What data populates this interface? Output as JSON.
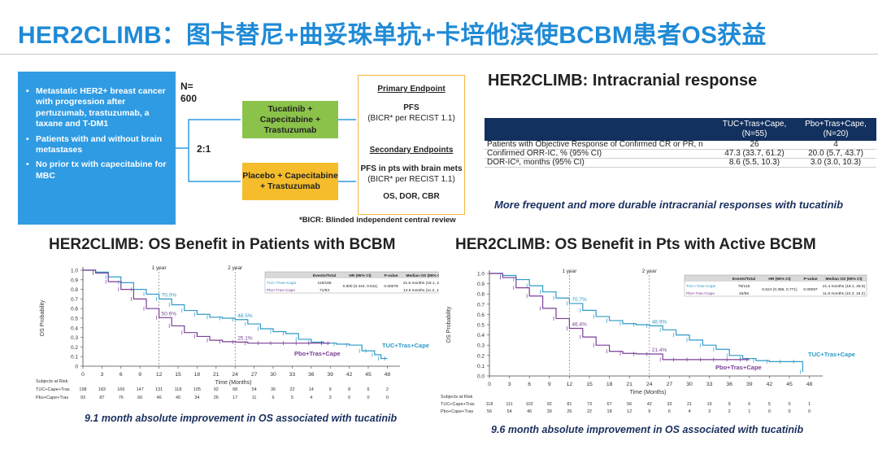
{
  "page": {
    "title": "HER2CLIMB：图卡替尼+曲妥珠单抗+卡培他滨使BCBM患者OS获益"
  },
  "design": {
    "eligibility": [
      "Metastatic HER2+ breast cancer with progression after pertuzumab, trastuzumab, a taxane and T-DM1",
      "Patients with and without brain metastases",
      "No prior tx with capecitabine for MBC"
    ],
    "n_label": "N=",
    "n_value": "600",
    "ratio": "2:1",
    "arm_tuc": "Tucatinib + Capecitabine + Trastuzumab",
    "arm_pbo": "Placebo + Capecitabine + Trastuzumab",
    "primary_header": "Primary Endpoint",
    "primary_1": "PFS",
    "primary_2": "(BICR* per RECIST 1.1)",
    "secondary_header": "Secondary Endpoints",
    "secondary_1": "PFS in pts with brain mets",
    "secondary_2": "(BICR* per RECIST 1.1)",
    "secondary_3": "OS, DOR, CBR",
    "footnote": "*BICR: Blinded independent central review"
  },
  "intracranial": {
    "title": "HER2CLIMB: Intracranial response",
    "col1": "TUC+Tras+Cape,",
    "col1_n": "(N=55)",
    "col2": "Pbo+Tras+Cape,",
    "col2_n": "(N=20)",
    "rows": [
      {
        "label": "Patients with Objective Response of Confirmed CR or PR, n",
        "a": "26",
        "b": "4"
      },
      {
        "label": "Confirmed ORR-IC, % (95% CI)",
        "a": "47.3 (33.7, 61.2)",
        "b": "20.0 (5.7, 43.7)"
      },
      {
        "label": "DOR-ICᵃ, months (95% CI)",
        "a": "8.6 (5.5, 10.3)",
        "b": "3.0 (3.0, 10.3)"
      }
    ],
    "caption": "More frequent and more durable intracranial responses with tucatinib"
  },
  "chart_data": [
    {
      "type": "line",
      "title": "HER2CLIMB: OS Benefit in Patients with BCBM",
      "xlabel": "Time (Months)",
      "ylabel": "OS Probability",
      "xlim": [
        0,
        50
      ],
      "ylim": [
        0,
        1.0
      ],
      "x_ticks": [
        0,
        3,
        6,
        9,
        12,
        15,
        18,
        21,
        24,
        27,
        30,
        33,
        36,
        39,
        42,
        45,
        48
      ],
      "y_ticks": [
        "0",
        "0.1",
        "0.2",
        "0.3",
        "0.4",
        "0.5",
        "0.6",
        "0.7",
        "0.8",
        "0.9",
        "1.0"
      ],
      "markers": [
        {
          "x": 12,
          "label": "1 year"
        },
        {
          "x": 24,
          "label": "2 year"
        }
      ],
      "series": [
        {
          "name": "TUC+Tras+Cape",
          "color": "#2f9ac7",
          "x": [
            0,
            2,
            4,
            6,
            8,
            10,
            12,
            14,
            16,
            18,
            20,
            22,
            24,
            26,
            28,
            30,
            32,
            34,
            36,
            38,
            40,
            42,
            44,
            45,
            46,
            47,
            48
          ],
          "y": [
            1.0,
            0.98,
            0.93,
            0.87,
            0.8,
            0.75,
            0.7,
            0.64,
            0.58,
            0.54,
            0.51,
            0.5,
            0.485,
            0.44,
            0.39,
            0.36,
            0.34,
            0.28,
            0.25,
            0.24,
            0.23,
            0.22,
            0.16,
            0.16,
            0.12,
            0.08,
            0.08
          ]
        },
        {
          "name": "Pbo+Tras+Cape",
          "color": "#7a3f96",
          "x": [
            0,
            2,
            4,
            6,
            8,
            10,
            12,
            14,
            16,
            18,
            20,
            22,
            24,
            26,
            28,
            30,
            32,
            34,
            36,
            38,
            39
          ],
          "y": [
            1.0,
            0.97,
            0.88,
            0.8,
            0.7,
            0.6,
            0.506,
            0.42,
            0.35,
            0.31,
            0.27,
            0.255,
            0.251,
            0.24,
            0.24,
            0.24,
            0.24,
            0.24,
            0.24,
            0.24,
            0.24
          ]
        }
      ],
      "point_labels": [
        {
          "x": 12,
          "y": 0.7,
          "text": "70.0%",
          "series": 0
        },
        {
          "x": 24,
          "y": 0.485,
          "text": "48.5%",
          "series": 0
        },
        {
          "x": 12,
          "y": 0.506,
          "text": "50.6%",
          "series": 1
        },
        {
          "x": 24,
          "y": 0.251,
          "text": "25.1%",
          "series": 1
        }
      ],
      "table": {
        "headers": [
          "",
          "Events/Total",
          "HR (95% CI)",
          "P-value",
          "Median OS (95% CI)"
        ],
        "rows": [
          [
            "TUC+Tras+Cape",
            "118/198",
            "0.600 (0.444, 0.811)",
            "0.00078",
            "21.6 months (18.1, 28.5)"
          ],
          [
            "Pbo+Tras+Cape",
            "71/93",
            "",
            "",
            "12.5 months (11.2, 16.9)"
          ]
        ]
      },
      "risk": {
        "label": "Subjects at Risk",
        "rows": [
          {
            "name": "TUC+Cape+Tras",
            "values": [
              "198",
              "183",
              "166",
              "147",
              "131",
              "118",
              "105",
              "92",
              "68",
              "54",
              "36",
              "22",
              "14",
              "9",
              "8",
              "6",
              "2"
            ]
          },
          {
            "name": "Pbo+Cape+Tras",
            "values": [
              "93",
              "87",
              "76",
              "66",
              "46",
              "40",
              "34",
              "26",
              "17",
              "11",
              "6",
              "5",
              "4",
              "3",
              "0",
              "0",
              "0"
            ]
          }
        ]
      },
      "caption": "9.1 month absolute improvement in OS associated with tucatinib"
    },
    {
      "type": "line",
      "title": "HER2CLIMB: OS Benefit in Pts with Active BCBM",
      "xlabel": "Time (Months)",
      "ylabel": "OS Probability",
      "xlim": [
        0,
        50
      ],
      "ylim": [
        0,
        1.0
      ],
      "x_ticks": [
        0,
        3,
        6,
        9,
        12,
        15,
        18,
        21,
        24,
        27,
        30,
        33,
        36,
        39,
        42,
        45,
        48
      ],
      "y_ticks": [
        "0.0",
        "0.1",
        "0.2",
        "0.3",
        "0.4",
        "0.5",
        "0.6",
        "0.7",
        "0.8",
        "0.9",
        "1.0"
      ],
      "markers": [
        {
          "x": 12,
          "label": "1 year"
        },
        {
          "x": 24,
          "label": "2 year"
        }
      ],
      "series": [
        {
          "name": "TUC+Tras+Cape",
          "color": "#2f9ac7",
          "x": [
            0,
            2,
            4,
            6,
            8,
            10,
            12,
            14,
            16,
            18,
            20,
            22,
            24,
            26,
            28,
            30,
            32,
            34,
            36,
            38,
            40,
            42,
            44,
            46,
            47
          ],
          "y": [
            1.0,
            0.98,
            0.94,
            0.88,
            0.82,
            0.76,
            0.707,
            0.64,
            0.58,
            0.54,
            0.51,
            0.5,
            0.489,
            0.45,
            0.4,
            0.35,
            0.3,
            0.26,
            0.2,
            0.17,
            0.15,
            0.14,
            0.14,
            0.14,
            0.04
          ]
        },
        {
          "name": "Pbo+Tras+Cape",
          "color": "#7a3f96",
          "x": [
            0,
            2,
            4,
            6,
            8,
            10,
            12,
            14,
            16,
            18,
            20,
            22,
            24,
            26,
            28,
            30,
            32,
            34,
            36,
            38,
            39
          ],
          "y": [
            1.0,
            0.96,
            0.86,
            0.78,
            0.66,
            0.56,
            0.464,
            0.38,
            0.3,
            0.24,
            0.22,
            0.215,
            0.214,
            0.16,
            0.16,
            0.16,
            0.16,
            0.16,
            0.16,
            0.16,
            0.16
          ]
        }
      ],
      "point_labels": [
        {
          "x": 12,
          "y": 0.707,
          "text": "70.7%",
          "series": 0
        },
        {
          "x": 24,
          "y": 0.489,
          "text": "48.9%",
          "series": 0
        },
        {
          "x": 12,
          "y": 0.464,
          "text": "46.4%",
          "series": 1
        },
        {
          "x": 24,
          "y": 0.214,
          "text": "21.4%",
          "series": 1
        }
      ],
      "table": {
        "headers": [
          "",
          "Events/Total",
          "HR (95% CI)",
          "P-value",
          "Median OS (95% CI)"
        ],
        "rows": [
          [
            "TUC+Tras+Cape",
            "75/118",
            "0.524 (0.356, 0.771)",
            "0.00087",
            "21.4 months (18.1, 28.6)"
          ],
          [
            "Pbo+Tras+Cape",
            "46/56",
            "",
            "",
            "11.8 months (10.3, 15.2)"
          ]
        ]
      },
      "risk": {
        "label": "Subjects at Risk",
        "rows": [
          {
            "name": "TUC+Cape+Tras",
            "values": [
              "118",
              "111",
              "102",
              "92",
              "81",
              "73",
              "67",
              "56",
              "42",
              "33",
              "21",
              "16",
              "9",
              "6",
              "5",
              "0",
              "1"
            ]
          },
          {
            "name": "Pbo+Cape+Tras",
            "values": [
              "56",
              "54",
              "46",
              "39",
              "26",
              "22",
              "18",
              "12",
              "9",
              "6",
              "4",
              "3",
              "2",
              "1",
              "0",
              "0",
              "0"
            ]
          }
        ]
      },
      "caption": "9.6 month absolute improvement in OS associated with tucatinib"
    }
  ]
}
